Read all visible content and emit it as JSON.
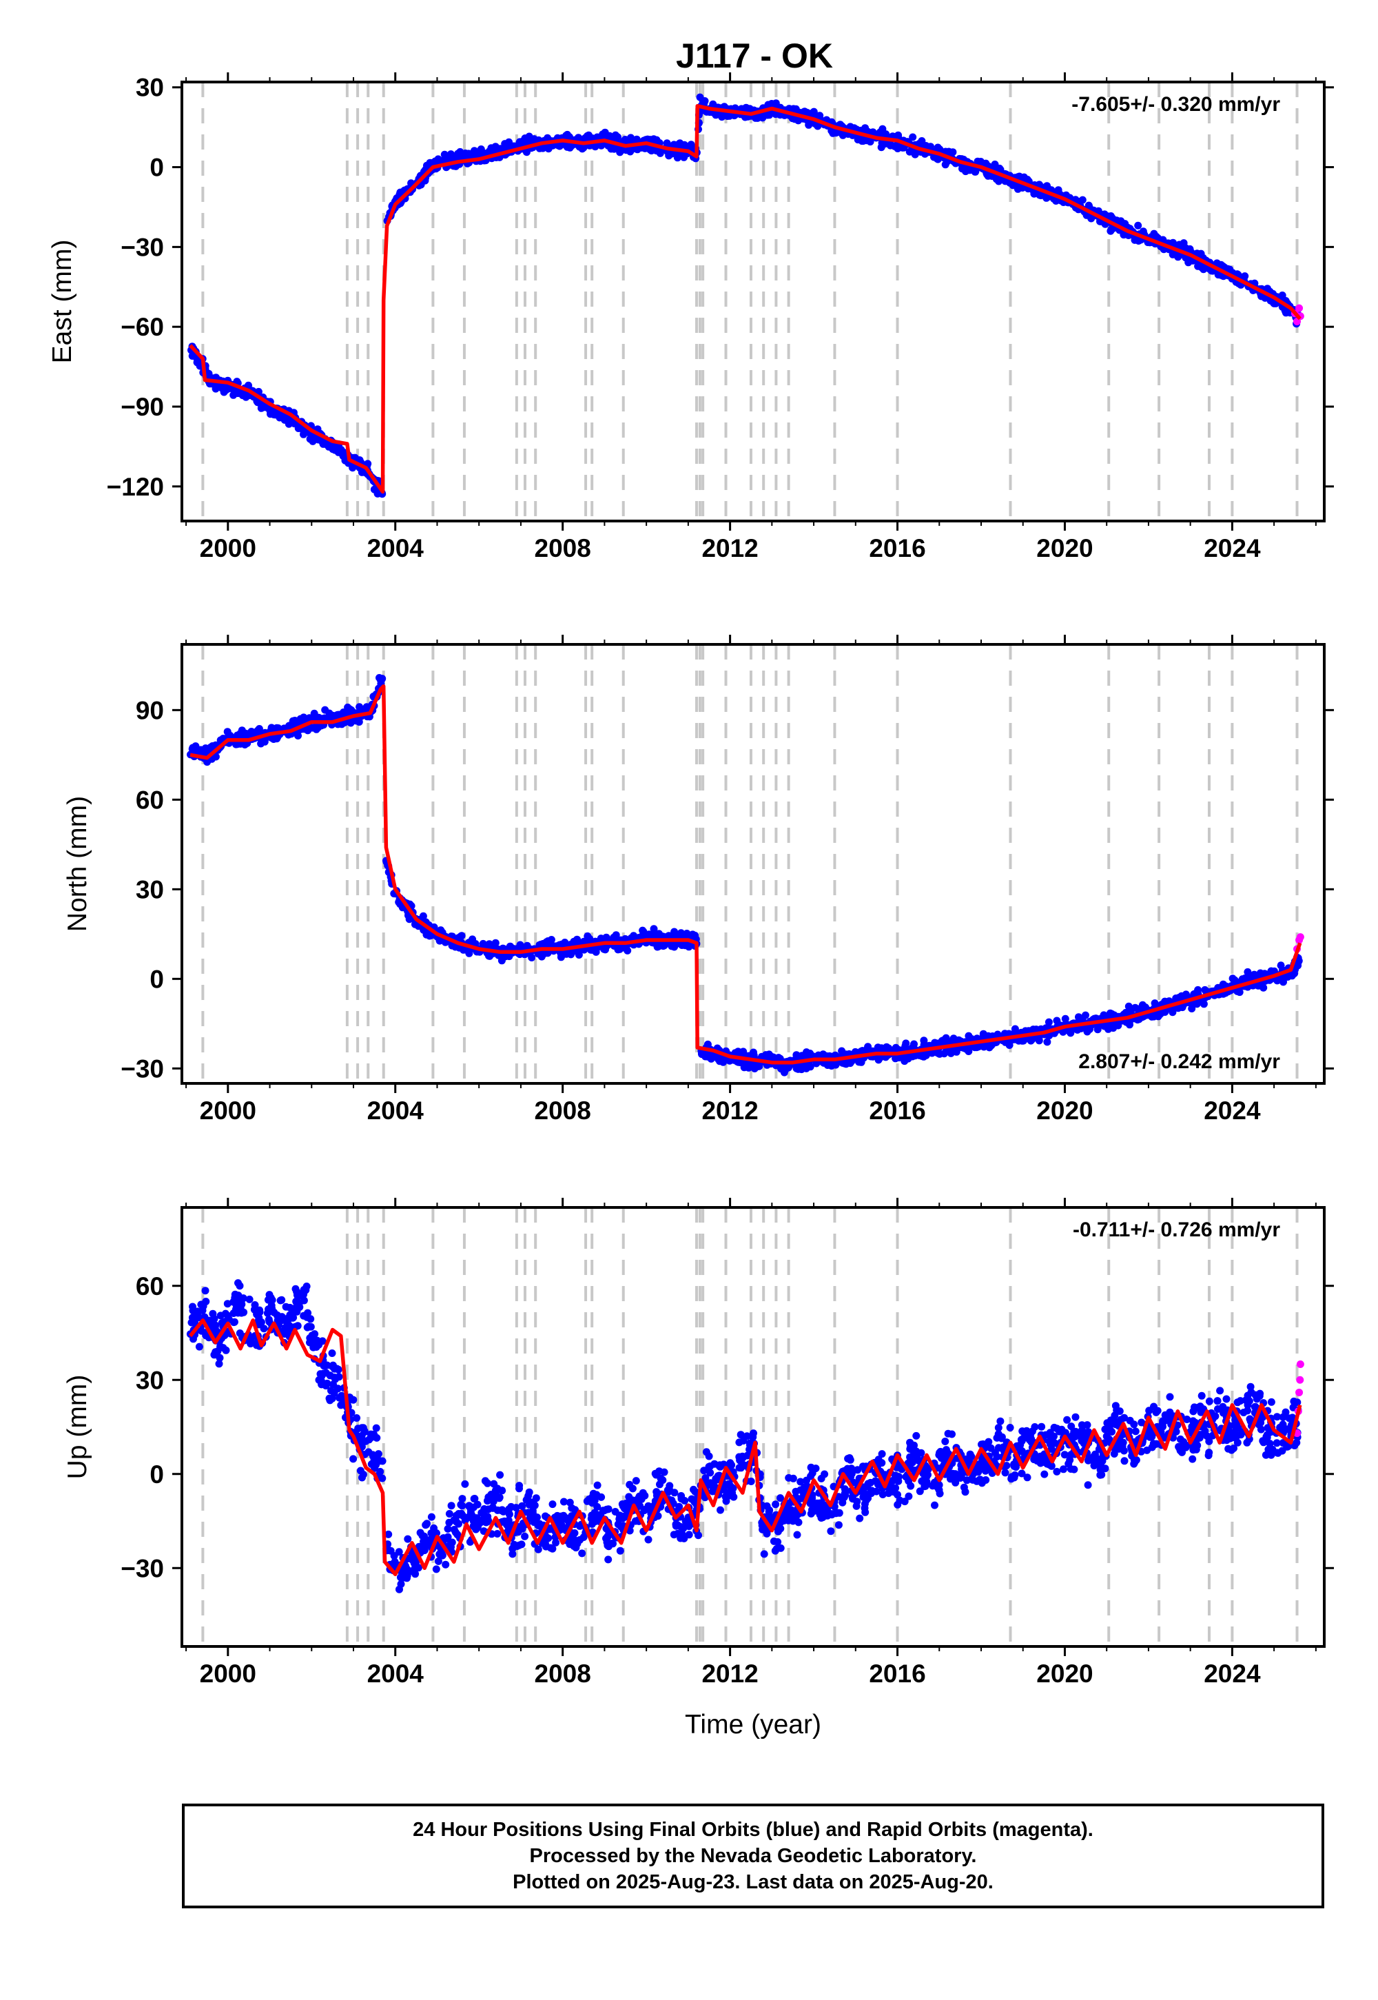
{
  "figure": {
    "title": "J117 - OK",
    "xlabel": "Time (year)",
    "caption": [
      "24 Hour Positions Using Final Orbits (blue) and Rapid Orbits (magenta).",
      "Processed by the Nevada Geodetic Laboratory.",
      "Plotted on 2025-Aug-23. Last data on 2025-Aug-20."
    ],
    "colors": {
      "final": "#0000ff",
      "rapid": "#ff00ff",
      "model": "#ff0000",
      "event": "#c8c8c8"
    }
  },
  "chart_data": [
    {
      "type": "scatter",
      "ylabel": "East (mm)",
      "rate_text": "-7.605+/- 0.320 mm/yr",
      "rate_position": "top-right",
      "xlim": [
        1998.9,
        2026.2
      ],
      "ylim": [
        -133,
        32
      ],
      "xticks": [
        2000,
        2004,
        2008,
        2012,
        2016,
        2020,
        2024
      ],
      "xtick_labels": [
        "2000",
        "2004",
        "2008",
        "2012",
        "2016",
        "2020",
        "2024"
      ],
      "yticks": [
        30,
        0,
        -30,
        -60,
        -90,
        -120
      ],
      "ytick_labels": [
        "30",
        "0",
        "−30",
        "−60",
        "−90",
        "−120"
      ],
      "series": [
        {
          "role": "final",
          "x": [
            1999.1,
            1999.3,
            1999.6,
            2000.0,
            2000.5,
            2001.0,
            2001.5,
            2002.0,
            2002.5,
            2002.9,
            2003.2,
            2003.6,
            2003.72,
            2003.8,
            2004.0,
            2004.4,
            2004.9,
            2005.5,
            2006.0,
            2006.5,
            2007.0,
            2007.5,
            2008.0,
            2008.5,
            2009.0,
            2009.5,
            2010.0,
            2010.5,
            2011.0,
            2011.2,
            2011.28,
            2011.5,
            2012.0,
            2012.5,
            2013.0,
            2013.5,
            2014.0,
            2014.5,
            2015.0,
            2015.5,
            2016.0,
            2016.5,
            2017.0,
            2017.5,
            2018.0,
            2018.5,
            2019.0,
            2019.5,
            2020.0,
            2020.5,
            2021.0,
            2021.5,
            2022.0,
            2022.5,
            2023.0,
            2023.5,
            2024.0,
            2024.5,
            2025.0,
            2025.4,
            2025.6
          ],
          "y": [
            -68,
            -72,
            -81,
            -82,
            -85,
            -90,
            -94,
            -100,
            -104,
            -110,
            -112,
            -120,
            -124,
            -20,
            -13,
            -8,
            1,
            3,
            4,
            5,
            8,
            9,
            10,
            9,
            10,
            8,
            9,
            7,
            6,
            5,
            24,
            22,
            21,
            20,
            22,
            20,
            18,
            15,
            13,
            11,
            10,
            7,
            5,
            2,
            0,
            -3,
            -6,
            -9,
            -12,
            -16,
            -20,
            -24,
            -27,
            -30,
            -33,
            -37,
            -41,
            -45,
            -49,
            -53,
            -57
          ]
        },
        {
          "role": "rapid",
          "x": [
            2025.5,
            2025.55,
            2025.6,
            2025.63
          ],
          "y": [
            -55,
            -58,
            -53,
            -56
          ]
        },
        {
          "role": "model",
          "x": [
            1999.1,
            1999.4,
            1999.45,
            2000.0,
            2000.5,
            2001.0,
            2001.5,
            2002.0,
            2002.5,
            2002.85,
            2002.9,
            2003.3,
            2003.7,
            2003.72,
            2003.8,
            2004.0,
            2004.4,
            2004.9,
            2005.5,
            2006.0,
            2006.5,
            2007.0,
            2007.5,
            2008.0,
            2008.5,
            2009.0,
            2009.5,
            2010.0,
            2010.5,
            2011.0,
            2011.2,
            2011.22,
            2011.5,
            2012.0,
            2012.5,
            2013.0,
            2013.5,
            2014.0,
            2014.5,
            2015.0,
            2015.5,
            2016.0,
            2016.5,
            2017.0,
            2017.5,
            2018.0,
            2018.5,
            2019.0,
            2019.5,
            2020.0,
            2020.5,
            2021.0,
            2021.5,
            2022.0,
            2022.5,
            2023.0,
            2023.5,
            2024.0,
            2024.5,
            2025.0,
            2025.4,
            2025.62
          ],
          "y": [
            -67,
            -72,
            -80,
            -81,
            -84,
            -89,
            -93,
            -99,
            -103,
            -104,
            -110,
            -113,
            -122,
            -50,
            -22,
            -14,
            -8,
            0,
            2,
            3,
            5,
            7,
            9,
            10,
            9,
            10,
            8,
            9,
            7,
            6,
            4,
            23,
            22,
            21,
            20,
            22,
            20,
            18,
            15,
            13,
            11,
            10,
            7,
            5,
            2,
            0,
            -3,
            -6,
            -9,
            -12,
            -16,
            -20,
            -24,
            -27,
            -30,
            -33,
            -37,
            -41,
            -45,
            -49,
            -53,
            -57
          ]
        }
      ]
    },
    {
      "type": "scatter",
      "ylabel": "North (mm)",
      "rate_text": "2.807+/- 0.242 mm/yr",
      "rate_position": "bottom-right",
      "xlim": [
        1998.9,
        2026.2
      ],
      "ylim": [
        -35,
        112
      ],
      "xticks": [
        2000,
        2004,
        2008,
        2012,
        2016,
        2020,
        2024
      ],
      "xtick_labels": [
        "2000",
        "2004",
        "2008",
        "2012",
        "2016",
        "2020",
        "2024"
      ],
      "yticks": [
        90,
        60,
        30,
        0,
        -30
      ],
      "ytick_labels": [
        "90",
        "60",
        "30",
        "0",
        "−30"
      ],
      "series": [
        {
          "role": "final",
          "x": [
            1999.1,
            1999.5,
            2000.0,
            2000.5,
            2001.0,
            2001.5,
            2002.0,
            2002.5,
            2003.0,
            2003.4,
            2003.7,
            2003.78,
            2004.0,
            2004.5,
            2005.0,
            2005.5,
            2006.0,
            2006.5,
            2007.0,
            2007.5,
            2008.0,
            2008.5,
            2009.0,
            2009.5,
            2010.0,
            2010.5,
            2011.0,
            2011.2,
            2011.28,
            2011.6,
            2012.0,
            2012.5,
            2013.0,
            2013.5,
            2014.0,
            2014.5,
            2015.0,
            2015.5,
            2016.0,
            2016.5,
            2017.0,
            2017.5,
            2018.0,
            2018.5,
            2019.0,
            2019.5,
            2020.0,
            2020.5,
            2021.0,
            2021.5,
            2022.0,
            2022.5,
            2023.0,
            2023.5,
            2024.0,
            2024.5,
            2025.0,
            2025.4,
            2025.6
          ],
          "y": [
            76,
            75,
            80,
            81,
            82,
            84,
            86,
            87,
            88,
            90,
            100,
            40,
            28,
            20,
            15,
            12,
            10,
            9,
            9,
            10,
            10,
            11,
            12,
            12,
            13,
            13,
            13,
            13,
            -24,
            -25,
            -26,
            -27,
            -28,
            -28,
            -27,
            -27,
            -26,
            -25,
            -25,
            -24,
            -23,
            -22,
            -21,
            -20,
            -19,
            -18,
            -16,
            -15,
            -14,
            -13,
            -11,
            -9,
            -7,
            -5,
            -3,
            -1,
            1,
            3,
            6
          ]
        },
        {
          "role": "rapid",
          "x": [
            2025.55,
            2025.6,
            2025.63
          ],
          "y": [
            10,
            13,
            14
          ]
        },
        {
          "role": "model",
          "x": [
            1999.1,
            1999.5,
            2000.0,
            2000.5,
            2001.0,
            2001.5,
            2002.0,
            2002.5,
            2003.0,
            2003.4,
            2003.65,
            2003.72,
            2003.78,
            2004.0,
            2004.5,
            2005.0,
            2005.5,
            2006.0,
            2006.5,
            2007.0,
            2007.5,
            2008.0,
            2008.5,
            2009.0,
            2009.5,
            2010.0,
            2010.5,
            2011.0,
            2011.2,
            2011.22,
            2011.6,
            2012.0,
            2012.5,
            2013.0,
            2013.5,
            2014.0,
            2014.5,
            2015.0,
            2015.5,
            2016.0,
            2016.5,
            2017.0,
            2017.5,
            2018.0,
            2018.5,
            2019.0,
            2019.5,
            2020.0,
            2020.5,
            2021.0,
            2021.5,
            2022.0,
            2022.5,
            2023.0,
            2023.5,
            2024.0,
            2024.5,
            2025.0,
            2025.4,
            2025.62
          ],
          "y": [
            75,
            74,
            80,
            80,
            82,
            83,
            86,
            86,
            88,
            89,
            97,
            98,
            44,
            30,
            20,
            15,
            12,
            10,
            9,
            9,
            10,
            10,
            11,
            12,
            12,
            13,
            13,
            13,
            12,
            -23,
            -24,
            -26,
            -27,
            -28,
            -28,
            -27,
            -27,
            -26,
            -25,
            -25,
            -24,
            -23,
            -22,
            -21,
            -20,
            -19,
            -18,
            -16,
            -15,
            -14,
            -13,
            -11,
            -9,
            -7,
            -5,
            -3,
            -1,
            1,
            3,
            12
          ]
        }
      ]
    },
    {
      "type": "scatter",
      "ylabel": "Up (mm)",
      "rate_text": "-0.711+/- 0.726 mm/yr",
      "rate_position": "top-right",
      "xlim": [
        1998.9,
        2026.2
      ],
      "ylim": [
        -55,
        85
      ],
      "xticks": [
        2000,
        2004,
        2008,
        2012,
        2016,
        2020,
        2024
      ],
      "xtick_labels": [
        "2000",
        "2004",
        "2008",
        "2012",
        "2016",
        "2020",
        "2024"
      ],
      "yticks": [
        60,
        30,
        0,
        -30
      ],
      "ytick_labels": [
        "60",
        "30",
        "0",
        "−30"
      ],
      "series": [
        {
          "role": "final",
          "x": [
            1999.1,
            1999.4,
            1999.8,
            2000.2,
            2000.6,
            2001.0,
            2001.4,
            2001.8,
            2002.2,
            2002.6,
            2002.9,
            2003.1,
            2003.4,
            2003.7,
            2003.8,
            2004.0,
            2004.4,
            2004.8,
            2005.2,
            2005.6,
            2006.0,
            2006.4,
            2006.8,
            2007.2,
            2007.6,
            2008.0,
            2008.4,
            2008.8,
            2009.2,
            2009.6,
            2010.0,
            2010.4,
            2010.8,
            2011.2,
            2011.5,
            2011.9,
            2012.3,
            2012.6,
            2012.8,
            2013.2,
            2013.6,
            2014.0,
            2014.4,
            2014.8,
            2015.2,
            2015.6,
            2016.0,
            2016.4,
            2016.8,
            2017.2,
            2017.6,
            2018.0,
            2018.4,
            2018.8,
            2019.2,
            2019.6,
            2020.0,
            2020.4,
            2020.8,
            2021.2,
            2021.6,
            2022.0,
            2022.4,
            2022.8,
            2023.2,
            2023.6,
            2024.0,
            2024.4,
            2024.8,
            2025.2,
            2025.6
          ],
          "y": [
            45,
            50,
            42,
            55,
            45,
            52,
            47,
            55,
            35,
            30,
            18,
            10,
            8,
            2,
            -25,
            -30,
            -28,
            -20,
            -22,
            -12,
            -15,
            -8,
            -18,
            -12,
            -20,
            -15,
            -18,
            -10,
            -20,
            -10,
            -12,
            -5,
            -15,
            -10,
            0,
            -5,
            5,
            8,
            -18,
            -15,
            -10,
            -5,
            -12,
            -2,
            -6,
            2,
            -3,
            4,
            -1,
            6,
            0,
            3,
            8,
            4,
            10,
            6,
            12,
            8,
            5,
            14,
            10,
            12,
            18,
            12,
            15,
            18,
            14,
            20,
            16,
            12,
            18
          ]
        },
        {
          "role": "rapid",
          "x": [
            2025.55,
            2025.58,
            2025.6,
            2025.62,
            2025.63
          ],
          "y": [
            13,
            20,
            26,
            30,
            35
          ]
        },
        {
          "role": "model",
          "x": [
            1999.1,
            1999.4,
            1999.7,
            2000.0,
            2000.3,
            2000.6,
            2000.8,
            2001.1,
            2001.4,
            2001.6,
            2001.9,
            2002.2,
            2002.5,
            2002.7,
            2002.9,
            2003.0,
            2003.3,
            2003.5,
            2003.7,
            2003.75,
            2004.0,
            2004.4,
            2004.7,
            2005.0,
            2005.4,
            2005.7,
            2006.0,
            2006.4,
            2006.7,
            2007.0,
            2007.4,
            2007.7,
            2008.0,
            2008.4,
            2008.7,
            2009.0,
            2009.4,
            2009.7,
            2010.0,
            2010.4,
            2010.7,
            2011.0,
            2011.2,
            2011.3,
            2011.6,
            2011.9,
            2012.3,
            2012.6,
            2012.7,
            2013.0,
            2013.4,
            2013.7,
            2014.0,
            2014.4,
            2014.7,
            2015.0,
            2015.4,
            2015.7,
            2016.0,
            2016.4,
            2016.7,
            2017.0,
            2017.4,
            2017.7,
            2018.0,
            2018.4,
            2018.7,
            2019.0,
            2019.4,
            2019.7,
            2020.0,
            2020.4,
            2020.7,
            2021.0,
            2021.4,
            2021.7,
            2022.0,
            2022.4,
            2022.7,
            2023.0,
            2023.4,
            2023.7,
            2024.0,
            2024.4,
            2024.7,
            2025.0,
            2025.4,
            2025.62
          ],
          "y": [
            44,
            49,
            42,
            48,
            40,
            49,
            41,
            48,
            40,
            46,
            38,
            36,
            46,
            44,
            14,
            12,
            2,
            0,
            -6,
            -28,
            -32,
            -22,
            -30,
            -20,
            -28,
            -16,
            -24,
            -14,
            -22,
            -12,
            -22,
            -14,
            -22,
            -12,
            -22,
            -14,
            -22,
            -10,
            -18,
            -6,
            -14,
            -10,
            -18,
            -2,
            -10,
            2,
            -6,
            10,
            -12,
            -18,
            -6,
            -12,
            -2,
            -10,
            0,
            -6,
            4,
            -4,
            6,
            -2,
            6,
            -2,
            8,
            0,
            8,
            0,
            10,
            2,
            12,
            4,
            12,
            4,
            14,
            6,
            16,
            6,
            18,
            8,
            20,
            10,
            20,
            10,
            22,
            12,
            22,
            14,
            10,
            22
          ]
        }
      ]
    }
  ],
  "events": {
    "dash_x": [
      1999.4,
      2002.85,
      2003.1,
      2003.35,
      2003.72,
      2004.9,
      2005.65,
      2006.9,
      2007.1,
      2007.35,
      2008.55,
      2008.7,
      2009.45,
      2011.2,
      2011.28,
      2011.35,
      2011.9,
      2012.5,
      2012.8,
      2013.1,
      2013.4,
      2014.5,
      2016.0,
      2018.7,
      2021.05,
      2022.25,
      2023.45,
      2024.0,
      2025.55
    ]
  }
}
